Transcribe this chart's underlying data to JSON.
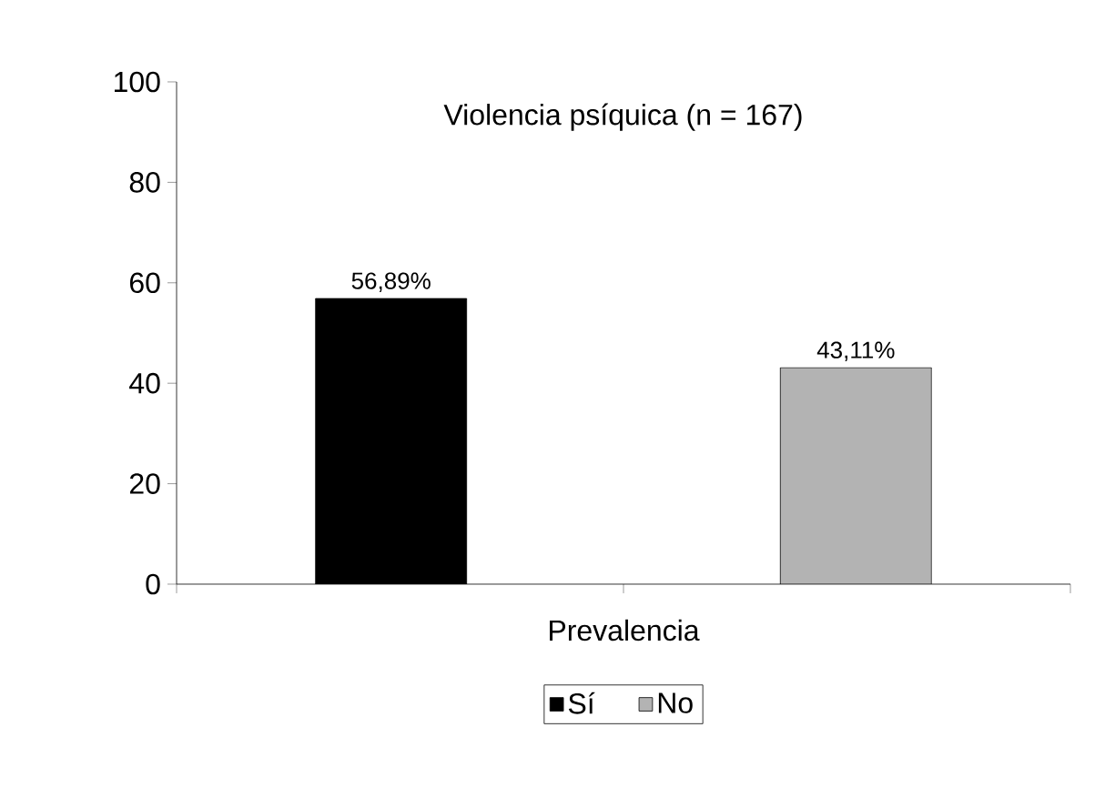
{
  "chart_data": {
    "type": "bar",
    "title": "Violencia psíquica (n = 167)",
    "xlabel": "Prevalencia",
    "categories": [
      null
    ],
    "series": [
      {
        "name": "Sí",
        "color": "#000000",
        "values": [
          56.89
        ],
        "value_labels": [
          "56,89%"
        ]
      },
      {
        "name": "No",
        "color": "#b3b3b3",
        "values": [
          43.11
        ],
        "value_labels": [
          "43,11%"
        ]
      }
    ],
    "ylim": [
      0,
      100
    ],
    "yticks": [
      0,
      20,
      40,
      60,
      80,
      100
    ],
    "grid": false,
    "legend": "bottom"
  }
}
